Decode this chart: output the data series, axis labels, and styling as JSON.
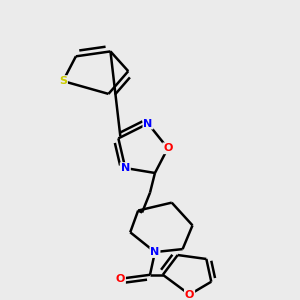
{
  "background_color": "#ebebeb",
  "bond_color": "#000000",
  "atom_colors": {
    "S": "#cccc00",
    "N": "#0000ff",
    "O": "#ff0000",
    "C": "#000000"
  },
  "figsize": [
    3.0,
    3.0
  ],
  "dpi": 100
}
